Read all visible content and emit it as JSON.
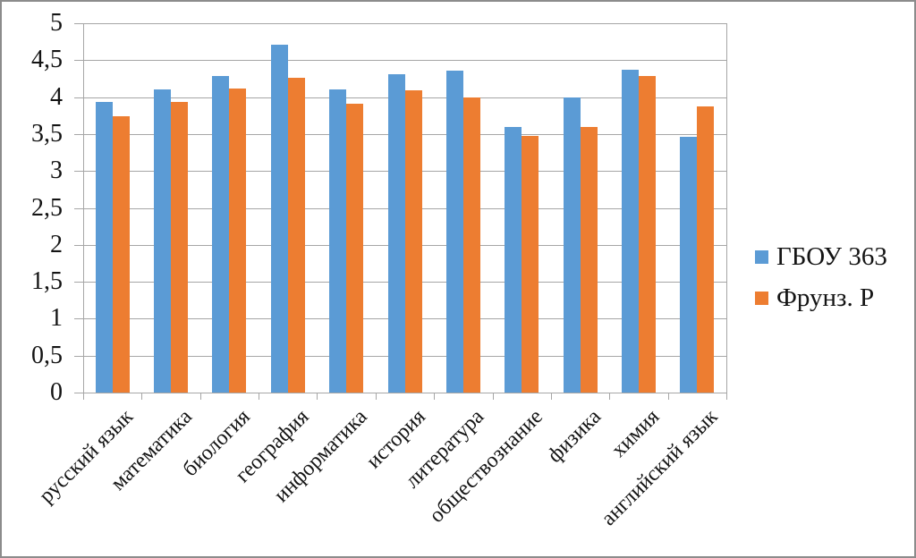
{
  "chart_data": {
    "type": "bar",
    "title": "",
    "xlabel": "",
    "ylabel": "",
    "categories": [
      "русский язык",
      "математика",
      "биология",
      "география",
      "информатика",
      "история",
      "литература",
      "обществознание",
      "физика",
      "химия",
      "английский язык"
    ],
    "series": [
      {
        "name": "ГБОУ 363",
        "color": "#5B9BD5",
        "values": [
          3.93,
          4.11,
          4.29,
          4.71,
          4.11,
          4.31,
          4.36,
          3.59,
          4.0,
          4.37,
          3.46
        ]
      },
      {
        "name": "Фрунз. Р",
        "color": "#ED7D31",
        "values": [
          3.74,
          3.93,
          4.12,
          4.26,
          3.91,
          4.09,
          4.0,
          3.47,
          3.59,
          4.29,
          3.88
        ]
      }
    ],
    "ylim": [
      0,
      5
    ],
    "y_tick_step": 0.5,
    "y_tick_labels": [
      "0",
      "0,5",
      "1",
      "1,5",
      "2",
      "2,5",
      "3",
      "3,5",
      "4",
      "4,5",
      "5"
    ],
    "grid": true,
    "legend_position": "right"
  },
  "colors": {
    "grid": "#a6a6a6",
    "axis": "#a6a6a6",
    "frame_border": "#8c8c8c",
    "background": "#ffffff",
    "series1": "#5B9BD5",
    "series2": "#ED7D31"
  }
}
